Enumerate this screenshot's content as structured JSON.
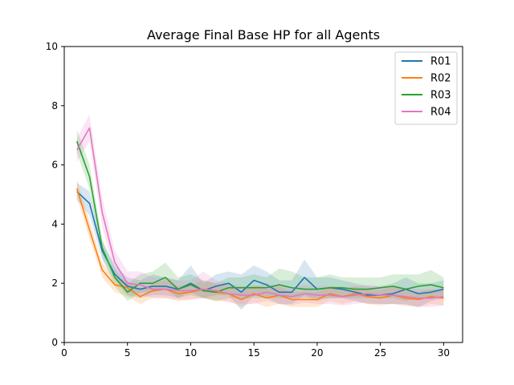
{
  "chart_data": {
    "type": "line",
    "title": "Average Final Base HP for all Agents",
    "xlabel": "",
    "ylabel": "",
    "xlim": [
      0,
      31.5
    ],
    "ylim": [
      0,
      10
    ],
    "xticks": [
      0,
      5,
      10,
      15,
      20,
      25,
      30
    ],
    "yticks": [
      0,
      2,
      4,
      6,
      8,
      10
    ],
    "grid": false,
    "legend": "top-right",
    "x": [
      1,
      2,
      3,
      4,
      5,
      6,
      7,
      8,
      9,
      10,
      11,
      12,
      13,
      14,
      15,
      16,
      17,
      18,
      19,
      20,
      21,
      22,
      23,
      24,
      25,
      26,
      27,
      28,
      29,
      30
    ],
    "series": [
      {
        "name": "R01",
        "color": "#1f77b4",
        "values": [
          5.1,
          4.7,
          3.1,
          2.3,
          1.9,
          1.8,
          1.9,
          1.9,
          1.8,
          2.0,
          1.75,
          1.9,
          2.0,
          1.7,
          2.1,
          1.95,
          1.7,
          1.7,
          2.2,
          1.8,
          1.85,
          1.8,
          1.7,
          1.6,
          1.6,
          1.65,
          1.8,
          1.65,
          1.7,
          1.8
        ],
        "lower": [
          4.8,
          4.3,
          2.8,
          2.1,
          1.6,
          1.5,
          1.6,
          1.6,
          1.5,
          1.7,
          1.5,
          1.6,
          1.6,
          1.1,
          1.6,
          1.5,
          1.3,
          1.3,
          1.6,
          1.4,
          1.5,
          1.5,
          1.4,
          1.3,
          1.3,
          1.3,
          1.3,
          1.2,
          1.4,
          1.5
        ],
        "upper": [
          5.4,
          5.1,
          3.4,
          2.6,
          2.2,
          2.1,
          2.3,
          2.2,
          2.1,
          2.6,
          2.0,
          2.3,
          2.4,
          2.3,
          2.6,
          2.4,
          2.1,
          2.1,
          2.8,
          2.2,
          2.2,
          2.1,
          2.0,
          1.9,
          1.9,
          2.0,
          2.2,
          2.0,
          2.0,
          2.1
        ]
      },
      {
        "name": "R02",
        "color": "#ff7f0e",
        "values": [
          5.2,
          3.8,
          2.45,
          1.95,
          1.85,
          1.55,
          1.75,
          1.8,
          1.65,
          1.7,
          1.8,
          1.7,
          1.65,
          1.45,
          1.65,
          1.5,
          1.6,
          1.45,
          1.45,
          1.45,
          1.65,
          1.55,
          1.65,
          1.55,
          1.5,
          1.6,
          1.5,
          1.45,
          1.55,
          1.5
        ],
        "lower": [
          4.9,
          3.5,
          2.2,
          1.7,
          1.55,
          1.3,
          1.5,
          1.5,
          1.4,
          1.45,
          1.5,
          1.4,
          1.4,
          1.2,
          1.35,
          1.2,
          1.3,
          1.2,
          1.2,
          1.2,
          1.4,
          1.3,
          1.4,
          1.3,
          1.25,
          1.3,
          1.25,
          1.2,
          1.3,
          1.25
        ],
        "upper": [
          5.5,
          4.1,
          2.7,
          2.2,
          2.1,
          1.8,
          2.0,
          2.1,
          1.9,
          1.95,
          2.1,
          2.0,
          1.9,
          1.7,
          1.95,
          1.8,
          1.9,
          1.7,
          1.7,
          1.7,
          1.9,
          1.8,
          1.9,
          1.8,
          1.75,
          1.9,
          1.75,
          1.7,
          1.8,
          1.75
        ]
      },
      {
        "name": "R03",
        "color": "#2ca02c",
        "values": [
          6.8,
          5.6,
          3.2,
          2.2,
          1.7,
          2.0,
          2.0,
          2.2,
          1.8,
          1.95,
          1.75,
          1.7,
          1.85,
          1.85,
          1.85,
          1.85,
          1.95,
          1.85,
          1.8,
          1.8,
          1.85,
          1.85,
          1.8,
          1.8,
          1.85,
          1.9,
          1.8,
          1.9,
          1.95,
          1.85
        ],
        "lower": [
          6.4,
          5.2,
          2.9,
          1.9,
          1.4,
          1.7,
          1.7,
          1.8,
          1.5,
          1.6,
          1.5,
          1.4,
          1.5,
          1.5,
          1.5,
          1.5,
          1.5,
          1.5,
          1.5,
          1.5,
          1.5,
          1.5,
          1.5,
          1.5,
          1.5,
          1.5,
          1.4,
          1.5,
          1.5,
          1.5
        ],
        "upper": [
          7.2,
          6.0,
          3.5,
          2.5,
          2.0,
          2.3,
          2.4,
          2.7,
          2.2,
          2.3,
          2.1,
          2.0,
          2.2,
          2.2,
          2.3,
          2.2,
          2.5,
          2.4,
          2.2,
          2.2,
          2.3,
          2.2,
          2.2,
          2.2,
          2.2,
          2.3,
          2.3,
          2.3,
          2.45,
          2.2
        ]
      },
      {
        "name": "R04",
        "color": "#e377c2",
        "values": [
          6.5,
          7.25,
          4.4,
          2.7,
          2.0,
          1.95,
          1.8,
          1.8,
          1.75,
          1.75,
          1.8,
          1.75,
          1.65,
          1.6,
          1.6,
          1.7,
          1.6,
          1.55,
          1.65,
          1.6,
          1.6,
          1.55,
          1.6,
          1.65,
          1.6,
          1.6,
          1.55,
          1.5,
          1.5,
          1.55
        ],
        "lower": [
          6.1,
          6.8,
          3.9,
          2.3,
          1.7,
          1.6,
          1.5,
          1.5,
          1.45,
          1.45,
          1.5,
          1.45,
          1.35,
          1.3,
          1.3,
          1.4,
          1.3,
          1.25,
          1.35,
          1.3,
          1.3,
          1.25,
          1.3,
          1.35,
          1.3,
          1.3,
          1.25,
          1.2,
          1.2,
          1.25
        ],
        "upper": [
          6.9,
          7.7,
          4.9,
          3.1,
          2.4,
          2.4,
          2.2,
          2.2,
          2.1,
          2.1,
          2.4,
          2.1,
          2.0,
          1.9,
          1.9,
          2.0,
          1.9,
          1.85,
          1.95,
          1.9,
          1.9,
          1.85,
          1.9,
          1.95,
          1.9,
          1.9,
          1.85,
          1.8,
          1.8,
          1.85
        ]
      }
    ]
  }
}
